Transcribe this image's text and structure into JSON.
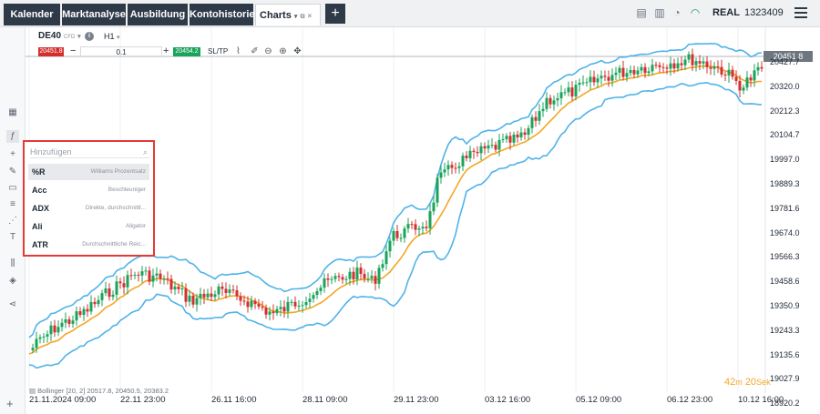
{
  "tabs": [
    {
      "label": "Kalender"
    },
    {
      "label": "Marktanalyse"
    },
    {
      "label": "Ausbildung"
    },
    {
      "label": "Kontohistorie"
    },
    {
      "label": "Charts"
    }
  ],
  "new_tab_label": "+",
  "account": {
    "mode": "REAL",
    "number": "1323409"
  },
  "instrument": {
    "symbol": "DE40",
    "type": "CFD",
    "timeframe": "H1"
  },
  "trade": {
    "sell_price": "20451.8",
    "quantity": "0.1",
    "buy_price": "20454.2",
    "sltp_label": "SL/TP"
  },
  "current_price": "20451.8",
  "y_axis": [
    "20427.7",
    "20320.0",
    "20212.3",
    "20104.7",
    "19997.0",
    "19889.3",
    "19781.6",
    "19674.0",
    "19566.3",
    "19458.6",
    "19350.9",
    "19243.3",
    "19135.6",
    "19027.9",
    "18920.2"
  ],
  "x_axis": [
    "21.11.2024 09:00",
    "22.11 23:00",
    "26.11 16:00",
    "28.11 09:00",
    "29.11 23:00",
    "03.12 16:00",
    "05.12 09:00",
    "06.12 23:00",
    "10.12 16:00"
  ],
  "timer": {
    "minutes": "42",
    "m_unit": "m",
    "seconds": "20",
    "s_unit": "Sek"
  },
  "indicator_legend": "Bollinger [20, 2] 20517.8, 20450.5, 20383.2",
  "indicator_picker": {
    "placeholder": "Hinzufügen",
    "items": [
      {
        "code": "%R",
        "desc": "Williams Prozentsatz"
      },
      {
        "code": "Acc",
        "desc": "Beschleuniger"
      },
      {
        "code": "ADX",
        "desc": "Direkte, durchschnittl..."
      },
      {
        "code": "Ali",
        "desc": "Aligator"
      },
      {
        "code": "ATR",
        "desc": "Durchschnittliche Reic..."
      }
    ]
  },
  "colors": {
    "up": "#1aa35a",
    "down": "#d32f2f",
    "bb": "#4fb3e8",
    "ma": "#f5a623",
    "tab_dark": "#2f3a48"
  }
}
